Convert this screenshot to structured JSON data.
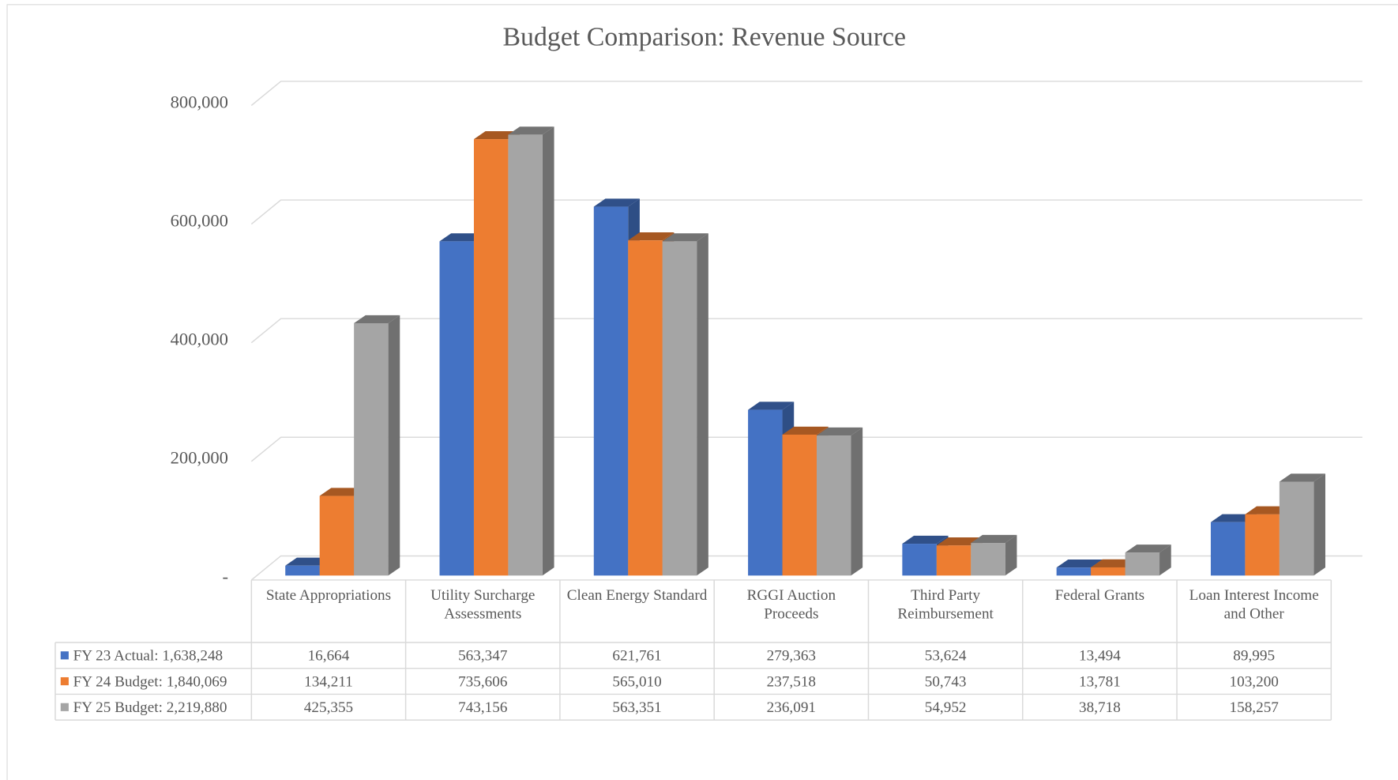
{
  "chart_data": {
    "type": "bar3d",
    "title": "Budget Comparison: Revenue Source",
    "categories": [
      "State Appropriations",
      "Utility Surcharge Assessments",
      "Clean Energy Standard",
      "RGGI Auction Proceeds",
      "Third Party Reimbursement",
      "Federal Grants",
      "Loan Interest Income and Other"
    ],
    "series": [
      {
        "name": "FY 23 Actual: 1,638,248",
        "color": "#4472c4",
        "values": [
          16664,
          563347,
          621761,
          279363,
          53624,
          13494,
          89995
        ],
        "value_labels": [
          "16,664",
          "563,347",
          "621,761",
          "279,363",
          "53,624",
          "13,494",
          "89,995"
        ]
      },
      {
        "name": "FY 24 Budget: 1,840,069",
        "color": "#ed7d31",
        "values": [
          134211,
          735606,
          565010,
          237518,
          50743,
          13781,
          103200
        ],
        "value_labels": [
          "134,211",
          "735,606",
          "565,010",
          "237,518",
          "50,743",
          "13,781",
          "103,200"
        ]
      },
      {
        "name": "FY 25 Budget: 2,219,880",
        "color": "#a5a5a5",
        "values": [
          425355,
          743156,
          563351,
          236091,
          54952,
          38718,
          158257
        ],
        "value_labels": [
          "425,355",
          "743,156",
          "563,351",
          "236,091",
          "54,952",
          "38,718",
          "158,257"
        ]
      }
    ],
    "ylim": [
      0,
      800000
    ],
    "yticks": [
      {
        "value": 0,
        "label": "-"
      },
      {
        "value": 200000,
        "label": "200,000"
      },
      {
        "value": 400000,
        "label": "400,000"
      },
      {
        "value": 600000,
        "label": "600,000"
      },
      {
        "value": 800000,
        "label": "800,000"
      }
    ],
    "grid": true,
    "legend": "table"
  }
}
